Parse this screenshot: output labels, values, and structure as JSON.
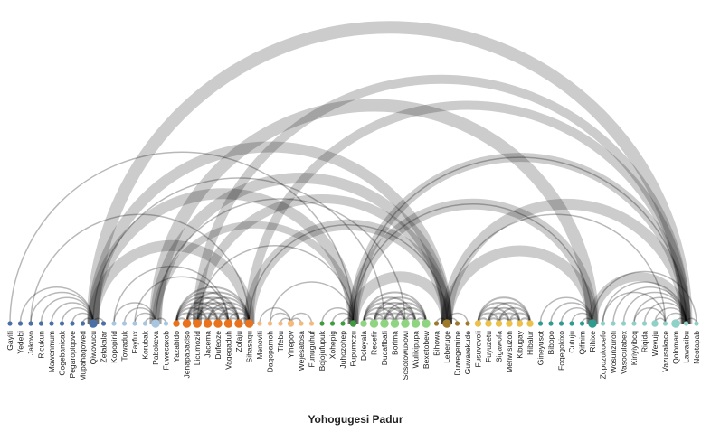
{
  "chart_data": {
    "type": "arc-diagram",
    "title": "",
    "xlabel": "Yohogugesi Padur",
    "nodes": [
      {
        "name": "Gayifi",
        "group": 0,
        "size": 1
      },
      {
        "name": "Yedebi",
        "group": 0,
        "size": 1
      },
      {
        "name": "Jakovo",
        "group": 0,
        "size": 1
      },
      {
        "name": "Ricukun",
        "group": 0,
        "size": 1
      },
      {
        "name": "Mawenmum",
        "group": 0,
        "size": 1
      },
      {
        "name": "Cogebanicak",
        "group": 0,
        "size": 1
      },
      {
        "name": "Pegaropiqove",
        "group": 0,
        "size": 1
      },
      {
        "name": "Mupahaqowed",
        "group": 0,
        "size": 1
      },
      {
        "name": "Qiwovucu",
        "group": 0,
        "size": 3
      },
      {
        "name": "Zefakalar",
        "group": 0,
        "size": 1
      },
      {
        "name": "Kopopirid",
        "group": 1,
        "size": 1
      },
      {
        "name": "Towaduk",
        "group": 1,
        "size": 1
      },
      {
        "name": "Fayfux",
        "group": 1,
        "size": 1
      },
      {
        "name": "Korubak",
        "group": 1,
        "size": 1
      },
      {
        "name": "Pabokeva",
        "group": 1,
        "size": 3
      },
      {
        "name": "Fuwecaxob",
        "group": 1,
        "size": 1
      },
      {
        "name": "Yazabido",
        "group": 2,
        "size": 2
      },
      {
        "name": "Jenapabaciso",
        "group": 2,
        "size": 3
      },
      {
        "name": "Licumozid",
        "group": 2,
        "size": 3
      },
      {
        "name": "Jacema",
        "group": 2,
        "size": 3
      },
      {
        "name": "Dufeoze",
        "group": 2,
        "size": 3
      },
      {
        "name": "Vagegaduh",
        "group": 2,
        "size": 3
      },
      {
        "name": "Zofaju",
        "group": 2,
        "size": 3
      },
      {
        "name": "Sihasaqu",
        "group": 2,
        "size": 3
      },
      {
        "name": "Menoviti",
        "group": 3,
        "size": 1
      },
      {
        "name": "Daqopamoh",
        "group": 3,
        "size": 1
      },
      {
        "name": "Tifebu",
        "group": 3,
        "size": 1
      },
      {
        "name": "Yinepov",
        "group": 3,
        "size": 2
      },
      {
        "name": "Wejesatosa",
        "group": 3,
        "size": 1
      },
      {
        "name": "Funuguhuf",
        "group": 3,
        "size": 1
      },
      {
        "name": "Bojojufupuk",
        "group": 4,
        "size": 1
      },
      {
        "name": "Xohepig",
        "group": 4,
        "size": 1
      },
      {
        "name": "Juhozohep",
        "group": 4,
        "size": 1
      },
      {
        "name": "Fupumczu",
        "group": 4,
        "size": 2
      },
      {
        "name": "Doleyala",
        "group": 5,
        "size": 2
      },
      {
        "name": "Recefir",
        "group": 5,
        "size": 3
      },
      {
        "name": "Duqaflbafi",
        "group": 5,
        "size": 3
      },
      {
        "name": "Borima",
        "group": 5,
        "size": 3
      },
      {
        "name": "Sosotowuxowi",
        "group": 5,
        "size": 3
      },
      {
        "name": "Wulikipupa",
        "group": 5,
        "size": 3
      },
      {
        "name": "Bexetobew",
        "group": 5,
        "size": 3
      },
      {
        "name": "Bihowa",
        "group": 6,
        "size": 1
      },
      {
        "name": "Leberuge",
        "group": 6,
        "size": 3
      },
      {
        "name": "Duwegemine",
        "group": 6,
        "size": 1
      },
      {
        "name": "Guwarekude",
        "group": 6,
        "size": 1
      },
      {
        "name": "Fusuvevoli",
        "group": 7,
        "size": 2
      },
      {
        "name": "Fuyuzetu",
        "group": 7,
        "size": 2
      },
      {
        "name": "Sigawofa",
        "group": 7,
        "size": 2
      },
      {
        "name": "Mefiwisuzoh",
        "group": 7,
        "size": 2
      },
      {
        "name": "Kibugay",
        "group": 7,
        "size": 2
      },
      {
        "name": "Hibalur",
        "group": 7,
        "size": 2
      },
      {
        "name": "Gineyusot",
        "group": 8,
        "size": 1
      },
      {
        "name": "Bibopo",
        "group": 8,
        "size": 1
      },
      {
        "name": "Foqegokixo",
        "group": 8,
        "size": 1
      },
      {
        "name": "Cutuju",
        "group": 8,
        "size": 1
      },
      {
        "name": "Qifinim",
        "group": 8,
        "size": 1
      },
      {
        "name": "Rihixe",
        "group": 8,
        "size": 3
      },
      {
        "name": "Zopozukocefo",
        "group": 9,
        "size": 1
      },
      {
        "name": "Wosunzurofi",
        "group": 9,
        "size": 1
      },
      {
        "name": "Vasoculabex",
        "group": 9,
        "size": 1
      },
      {
        "name": "Kiriyiyibcq",
        "group": 9,
        "size": 1
      },
      {
        "name": "Riqida",
        "group": 9,
        "size": 1
      },
      {
        "name": "Wevuju",
        "group": 9,
        "size": 2
      },
      {
        "name": "Vazusakace",
        "group": 9,
        "size": 1
      },
      {
        "name": "Qolomam",
        "group": 9,
        "size": 3
      },
      {
        "name": "Lawacibu",
        "group": 9,
        "size": 1
      },
      {
        "name": "Neotapab",
        "group": 9,
        "size": 1
      }
    ],
    "group_colors": [
      "#4a6fa5",
      "#a8c6e0",
      "#e8731c",
      "#f5b97a",
      "#3f9b3f",
      "#8fd480",
      "#9c7a2a",
      "#ecc14a",
      "#2f9b8f",
      "#8fd1c6"
    ],
    "links": [
      {
        "source": 8,
        "target": 65,
        "weight": 14
      },
      {
        "source": 14,
        "target": 56,
        "weight": 14
      },
      {
        "source": 8,
        "target": 33,
        "weight": 12
      },
      {
        "source": 8,
        "target": 42,
        "weight": 12
      },
      {
        "source": 18,
        "target": 65,
        "weight": 10
      },
      {
        "source": 23,
        "target": 65,
        "weight": 10
      },
      {
        "source": 33,
        "target": 65,
        "weight": 10
      },
      {
        "source": 23,
        "target": 42,
        "weight": 12
      },
      {
        "source": 42,
        "target": 65,
        "weight": 12
      },
      {
        "source": 33,
        "target": 56,
        "weight": 12
      },
      {
        "source": 14,
        "target": 42,
        "weight": 12
      },
      {
        "source": 42,
        "target": 56,
        "weight": 12
      },
      {
        "source": 8,
        "target": 23,
        "weight": 12
      },
      {
        "source": 33,
        "target": 42,
        "weight": 12
      },
      {
        "source": 18,
        "target": 42,
        "weight": 10
      },
      {
        "source": 56,
        "target": 65,
        "weight": 10
      },
      {
        "source": 14,
        "target": 33,
        "weight": 8
      },
      {
        "source": 0,
        "target": 33,
        "weight": 1.5
      },
      {
        "source": 2,
        "target": 23,
        "weight": 1.5
      },
      {
        "source": 8,
        "target": 36,
        "weight": 1.5
      },
      {
        "source": 14,
        "target": 38,
        "weight": 1.5
      },
      {
        "source": 33,
        "target": 65,
        "weight": 1.5
      },
      {
        "source": 23,
        "target": 42,
        "weight": 1.5
      },
      {
        "source": 33,
        "target": 56,
        "weight": 1.5
      },
      {
        "source": 18,
        "target": 33,
        "weight": 1.5
      },
      {
        "source": 12,
        "target": 21,
        "weight": 1.5
      },
      {
        "source": 10,
        "target": 21,
        "weight": 1.5
      },
      {
        "source": 25,
        "target": 33,
        "weight": 1.5
      },
      {
        "source": 42,
        "target": 63,
        "weight": 1.5
      },
      {
        "source": 56,
        "target": 66,
        "weight": 1.5
      },
      {
        "source": 1,
        "target": 8,
        "weight": 1.5
      },
      {
        "source": 2,
        "target": 8,
        "weight": 1.5
      },
      {
        "source": 3,
        "target": 8,
        "weight": 1.5
      },
      {
        "source": 4,
        "target": 8,
        "weight": 1.5
      },
      {
        "source": 5,
        "target": 8,
        "weight": 1.5
      },
      {
        "source": 6,
        "target": 8,
        "weight": 1.5
      },
      {
        "source": 7,
        "target": 8,
        "weight": 1.5
      },
      {
        "source": 8,
        "target": 9,
        "weight": 1.5
      },
      {
        "source": 10,
        "target": 14,
        "weight": 1.5
      },
      {
        "source": 11,
        "target": 14,
        "weight": 1.5
      },
      {
        "source": 12,
        "target": 14,
        "weight": 1.5
      },
      {
        "source": 13,
        "target": 14,
        "weight": 1.5
      },
      {
        "source": 14,
        "target": 15,
        "weight": 1.5
      },
      {
        "source": 16,
        "target": 17,
        "weight": 2
      },
      {
        "source": 16,
        "target": 18,
        "weight": 2
      },
      {
        "source": 16,
        "target": 19,
        "weight": 2
      },
      {
        "source": 16,
        "target": 20,
        "weight": 2
      },
      {
        "source": 16,
        "target": 21,
        "weight": 2
      },
      {
        "source": 16,
        "target": 22,
        "weight": 2
      },
      {
        "source": 16,
        "target": 23,
        "weight": 2
      },
      {
        "source": 17,
        "target": 18,
        "weight": 2
      },
      {
        "source": 17,
        "target": 19,
        "weight": 2
      },
      {
        "source": 17,
        "target": 20,
        "weight": 2
      },
      {
        "source": 17,
        "target": 21,
        "weight": 2
      },
      {
        "source": 17,
        "target": 22,
        "weight": 2
      },
      {
        "source": 17,
        "target": 23,
        "weight": 2
      },
      {
        "source": 18,
        "target": 19,
        "weight": 2
      },
      {
        "source": 18,
        "target": 20,
        "weight": 2
      },
      {
        "source": 18,
        "target": 21,
        "weight": 2
      },
      {
        "source": 18,
        "target": 22,
        "weight": 2
      },
      {
        "source": 18,
        "target": 23,
        "weight": 2
      },
      {
        "source": 19,
        "target": 20,
        "weight": 2
      },
      {
        "source": 19,
        "target": 21,
        "weight": 2
      },
      {
        "source": 19,
        "target": 22,
        "weight": 2
      },
      {
        "source": 19,
        "target": 23,
        "weight": 2
      },
      {
        "source": 20,
        "target": 21,
        "weight": 2
      },
      {
        "source": 20,
        "target": 22,
        "weight": 2
      },
      {
        "source": 20,
        "target": 23,
        "weight": 2
      },
      {
        "source": 21,
        "target": 22,
        "weight": 2
      },
      {
        "source": 21,
        "target": 23,
        "weight": 2
      },
      {
        "source": 22,
        "target": 23,
        "weight": 2
      },
      {
        "source": 24,
        "target": 27,
        "weight": 1.5
      },
      {
        "source": 25,
        "target": 27,
        "weight": 1.5
      },
      {
        "source": 26,
        "target": 27,
        "weight": 1.5
      },
      {
        "source": 27,
        "target": 28,
        "weight": 1.5
      },
      {
        "source": 27,
        "target": 29,
        "weight": 1.5
      },
      {
        "source": 30,
        "target": 33,
        "weight": 1.5
      },
      {
        "source": 31,
        "target": 33,
        "weight": 1.5
      },
      {
        "source": 32,
        "target": 33,
        "weight": 1.5
      },
      {
        "source": 34,
        "target": 35,
        "weight": 2
      },
      {
        "source": 34,
        "target": 36,
        "weight": 2
      },
      {
        "source": 34,
        "target": 37,
        "weight": 2
      },
      {
        "source": 34,
        "target": 38,
        "weight": 2
      },
      {
        "source": 34,
        "target": 39,
        "weight": 2
      },
      {
        "source": 34,
        "target": 40,
        "weight": 2
      },
      {
        "source": 35,
        "target": 36,
        "weight": 2
      },
      {
        "source": 35,
        "target": 37,
        "weight": 2
      },
      {
        "source": 35,
        "target": 38,
        "weight": 2
      },
      {
        "source": 35,
        "target": 39,
        "weight": 2
      },
      {
        "source": 35,
        "target": 40,
        "weight": 2
      },
      {
        "source": 36,
        "target": 37,
        "weight": 2
      },
      {
        "source": 36,
        "target": 38,
        "weight": 2
      },
      {
        "source": 36,
        "target": 39,
        "weight": 2
      },
      {
        "source": 36,
        "target": 40,
        "weight": 2
      },
      {
        "source": 37,
        "target": 38,
        "weight": 2
      },
      {
        "source": 37,
        "target": 39,
        "weight": 2
      },
      {
        "source": 37,
        "target": 40,
        "weight": 2
      },
      {
        "source": 38,
        "target": 39,
        "weight": 2
      },
      {
        "source": 38,
        "target": 40,
        "weight": 2
      },
      {
        "source": 39,
        "target": 40,
        "weight": 2
      },
      {
        "source": 41,
        "target": 42,
        "weight": 1.5
      },
      {
        "source": 42,
        "target": 43,
        "weight": 1.5
      },
      {
        "source": 42,
        "target": 44,
        "weight": 1.5
      },
      {
        "source": 45,
        "target": 46,
        "weight": 2
      },
      {
        "source": 45,
        "target": 47,
        "weight": 2
      },
      {
        "source": 45,
        "target": 48,
        "weight": 2
      },
      {
        "source": 45,
        "target": 49,
        "weight": 2
      },
      {
        "source": 45,
        "target": 50,
        "weight": 2
      },
      {
        "source": 46,
        "target": 47,
        "weight": 2
      },
      {
        "source": 46,
        "target": 48,
        "weight": 2
      },
      {
        "source": 46,
        "target": 49,
        "weight": 2
      },
      {
        "source": 46,
        "target": 50,
        "weight": 2
      },
      {
        "source": 47,
        "target": 48,
        "weight": 2
      },
      {
        "source": 47,
        "target": 49,
        "weight": 2
      },
      {
        "source": 47,
        "target": 50,
        "weight": 2
      },
      {
        "source": 48,
        "target": 49,
        "weight": 2
      },
      {
        "source": 48,
        "target": 50,
        "weight": 2
      },
      {
        "source": 49,
        "target": 50,
        "weight": 2
      },
      {
        "source": 51,
        "target": 56,
        "weight": 1.5
      },
      {
        "source": 52,
        "target": 56,
        "weight": 1.5
      },
      {
        "source": 53,
        "target": 56,
        "weight": 1.5
      },
      {
        "source": 54,
        "target": 56,
        "weight": 1.5
      },
      {
        "source": 55,
        "target": 56,
        "weight": 1.5
      },
      {
        "source": 57,
        "target": 65,
        "weight": 1.5
      },
      {
        "source": 58,
        "target": 65,
        "weight": 1.5
      },
      {
        "source": 59,
        "target": 65,
        "weight": 1.5
      },
      {
        "source": 60,
        "target": 65,
        "weight": 1.5
      },
      {
        "source": 61,
        "target": 65,
        "weight": 1.5
      },
      {
        "source": 62,
        "target": 65,
        "weight": 1.5
      },
      {
        "source": 63,
        "target": 65,
        "weight": 1.5
      },
      {
        "source": 64,
        "target": 65,
        "weight": 1.5
      },
      {
        "source": 65,
        "target": 66,
        "weight": 1.5
      },
      {
        "source": 57,
        "target": 63,
        "weight": 1.5
      },
      {
        "source": 60,
        "target": 63,
        "weight": 1.5
      },
      {
        "source": 62,
        "target": 63,
        "weight": 1.5
      }
    ]
  }
}
